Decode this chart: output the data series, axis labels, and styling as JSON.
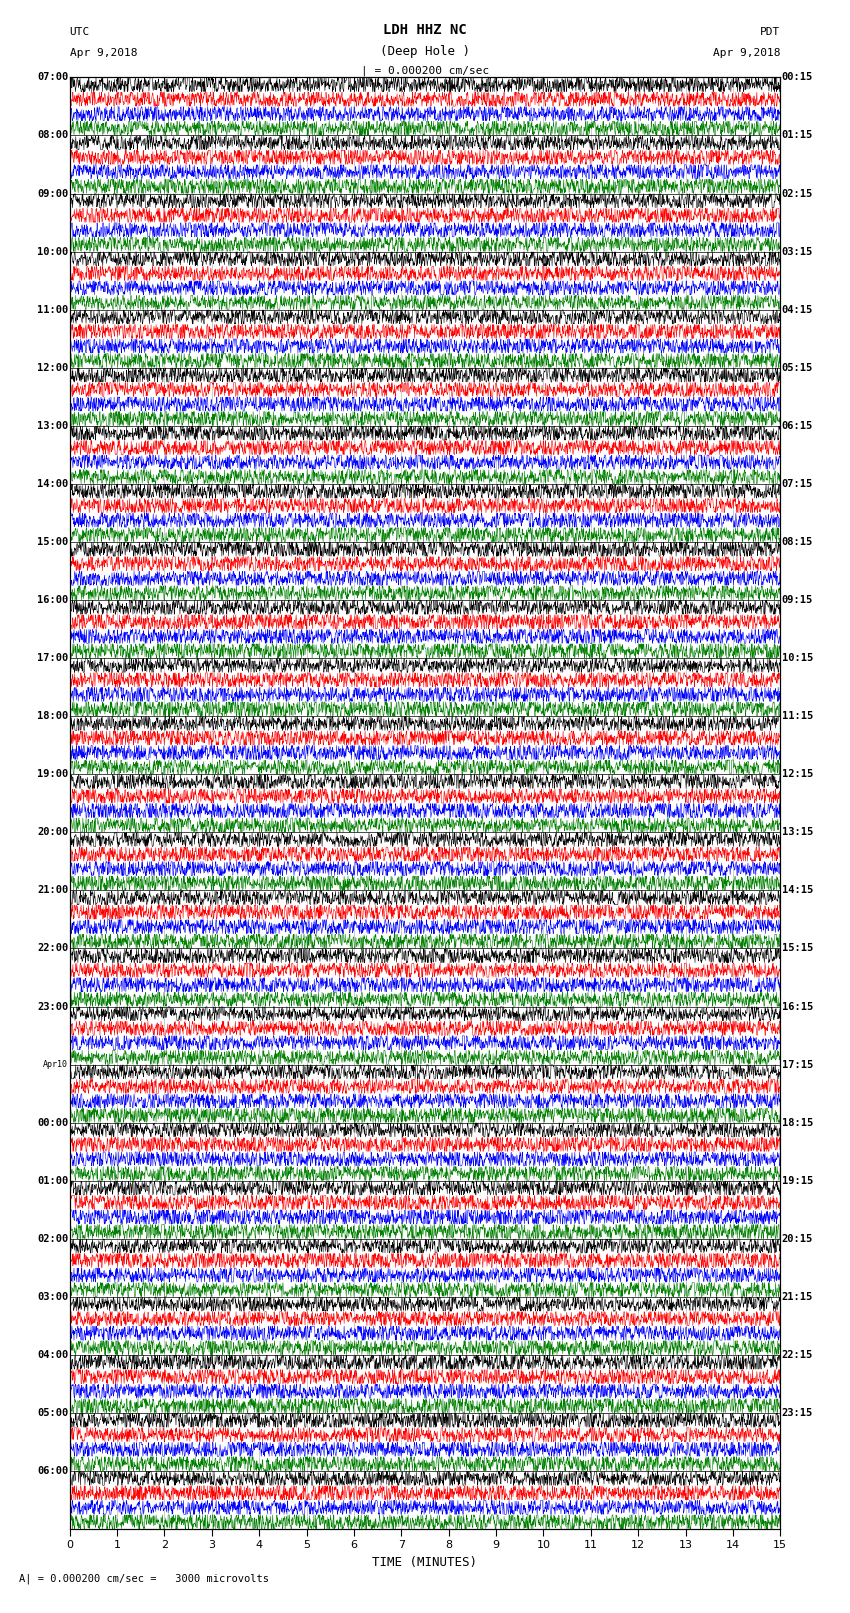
{
  "title_line1": "LDH HHZ NC",
  "title_line2": "(Deep Hole )",
  "scale_text": "| = 0.000200 cm/sec",
  "bottom_scale_text": "= 0.000200 cm/sec =   3000 microvolts",
  "utc_label": "UTC",
  "pdt_label": "PDT",
  "date_left": "Apr 9,2018",
  "date_right": "Apr 9,2018",
  "xlabel": "TIME (MINUTES)",
  "xmin": 0,
  "xmax": 15,
  "xticks": [
    0,
    1,
    2,
    3,
    4,
    5,
    6,
    7,
    8,
    9,
    10,
    11,
    12,
    13,
    14,
    15
  ],
  "left_times": [
    "07:00",
    "08:00",
    "09:00",
    "10:00",
    "11:00",
    "12:00",
    "13:00",
    "14:00",
    "15:00",
    "16:00",
    "17:00",
    "18:00",
    "19:00",
    "20:00",
    "21:00",
    "22:00",
    "23:00",
    "Apr10",
    "00:00",
    "01:00",
    "02:00",
    "03:00",
    "04:00",
    "05:00",
    "06:00"
  ],
  "right_times": [
    "00:15",
    "01:15",
    "02:15",
    "03:15",
    "04:15",
    "05:15",
    "06:15",
    "07:15",
    "08:15",
    "09:15",
    "10:15",
    "11:15",
    "12:15",
    "13:15",
    "14:15",
    "15:15",
    "16:15",
    "17:15",
    "18:15",
    "19:15",
    "20:15",
    "21:15",
    "22:15",
    "23:15"
  ],
  "trace_colors": [
    "black",
    "red",
    "blue",
    "green"
  ],
  "n_rows": 25,
  "traces_per_row": 4,
  "fig_width": 8.5,
  "fig_height": 16.13,
  "background_color": "white",
  "noise_seed": 12345
}
